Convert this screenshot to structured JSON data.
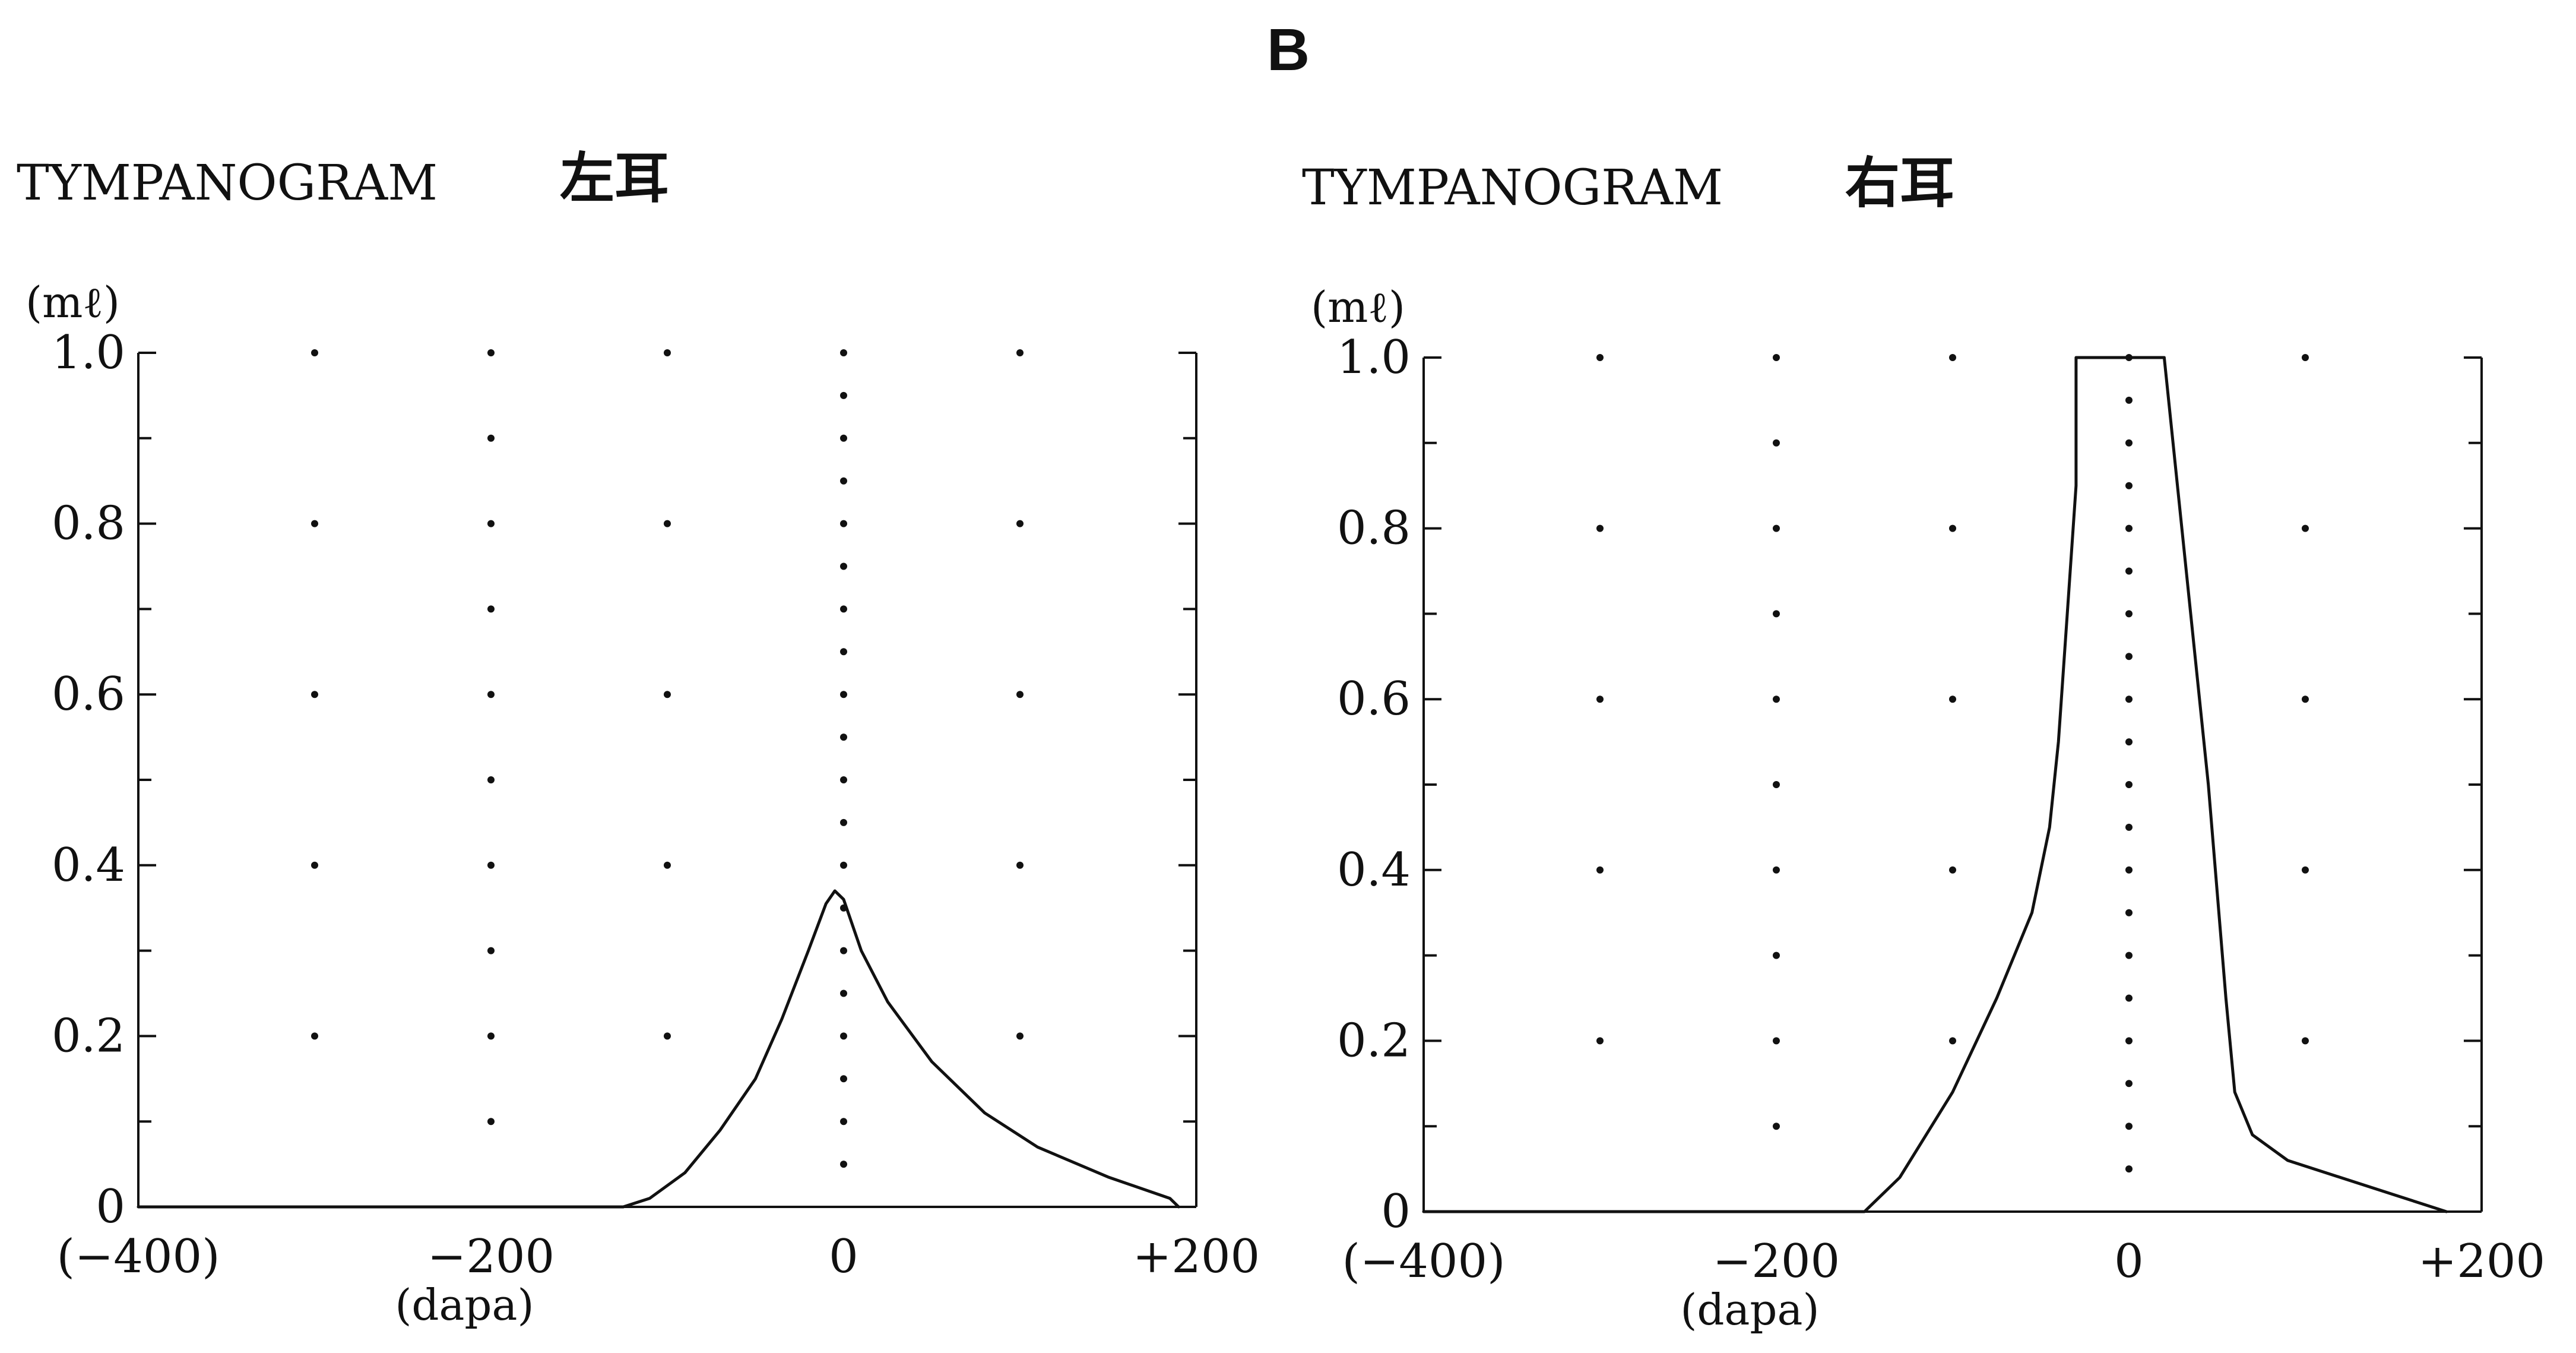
{
  "figure_label": "B",
  "chart_data": [
    {
      "type": "line",
      "title": "TYMPANOGRAM",
      "ear_label": "左耳",
      "y_unit": "(mℓ)",
      "xlabel": "(dapa)",
      "xlim": [
        -400,
        200
      ],
      "ylim": [
        0,
        1.0
      ],
      "x_ticks": [
        -400,
        -200,
        0,
        200
      ],
      "x_tick_labels": [
        "(−400)",
        "−200",
        "0",
        "+200"
      ],
      "y_ticks": [
        0,
        0.2,
        0.4,
        0.6,
        0.8,
        1.0
      ],
      "y_tick_labels": [
        "0",
        "0.2",
        "0.4",
        "0.6",
        "0.8",
        "1.0"
      ],
      "grid": "dotted",
      "series": [
        {
          "x": [
            -400,
            -125,
            -110,
            -90,
            -70,
            -50,
            -35,
            -20,
            -10,
            -5,
            0,
            10,
            25,
            50,
            80,
            110,
            150,
            185,
            190
          ],
          "y": [
            0,
            0,
            0.01,
            0.04,
            0.09,
            0.15,
            0.22,
            0.3,
            0.355,
            0.37,
            0.36,
            0.3,
            0.24,
            0.17,
            0.11,
            0.07,
            0.035,
            0.01,
            0
          ]
        }
      ]
    },
    {
      "type": "line",
      "title": "TYMPANOGRAM",
      "ear_label": "右耳",
      "y_unit": "(mℓ)",
      "xlabel": "(dapa)",
      "xlim": [
        -400,
        200
      ],
      "ylim": [
        0,
        1.0
      ],
      "x_ticks": [
        -400,
        -200,
        0,
        200
      ],
      "x_tick_labels": [
        "(−400)",
        "−200",
        "0",
        "+200"
      ],
      "y_ticks": [
        0,
        0.2,
        0.4,
        0.6,
        0.8,
        1.0
      ],
      "y_tick_labels": [
        "0",
        "0.2",
        "0.4",
        "0.6",
        "0.8",
        "1.0"
      ],
      "grid": "dotted",
      "series": [
        {
          "x": [
            -400,
            -150,
            -130,
            -100,
            -75,
            -55,
            -45,
            -40,
            -35,
            -30,
            -30,
            20,
            30,
            45,
            55,
            60,
            70,
            90,
            120,
            150,
            180
          ],
          "y": [
            0,
            0,
            0.04,
            0.14,
            0.25,
            0.35,
            0.45,
            0.55,
            0.7,
            0.85,
            1.0,
            1.0,
            0.8,
            0.5,
            0.25,
            0.14,
            0.09,
            0.06,
            0.04,
            0.02,
            0
          ]
        }
      ]
    }
  ]
}
